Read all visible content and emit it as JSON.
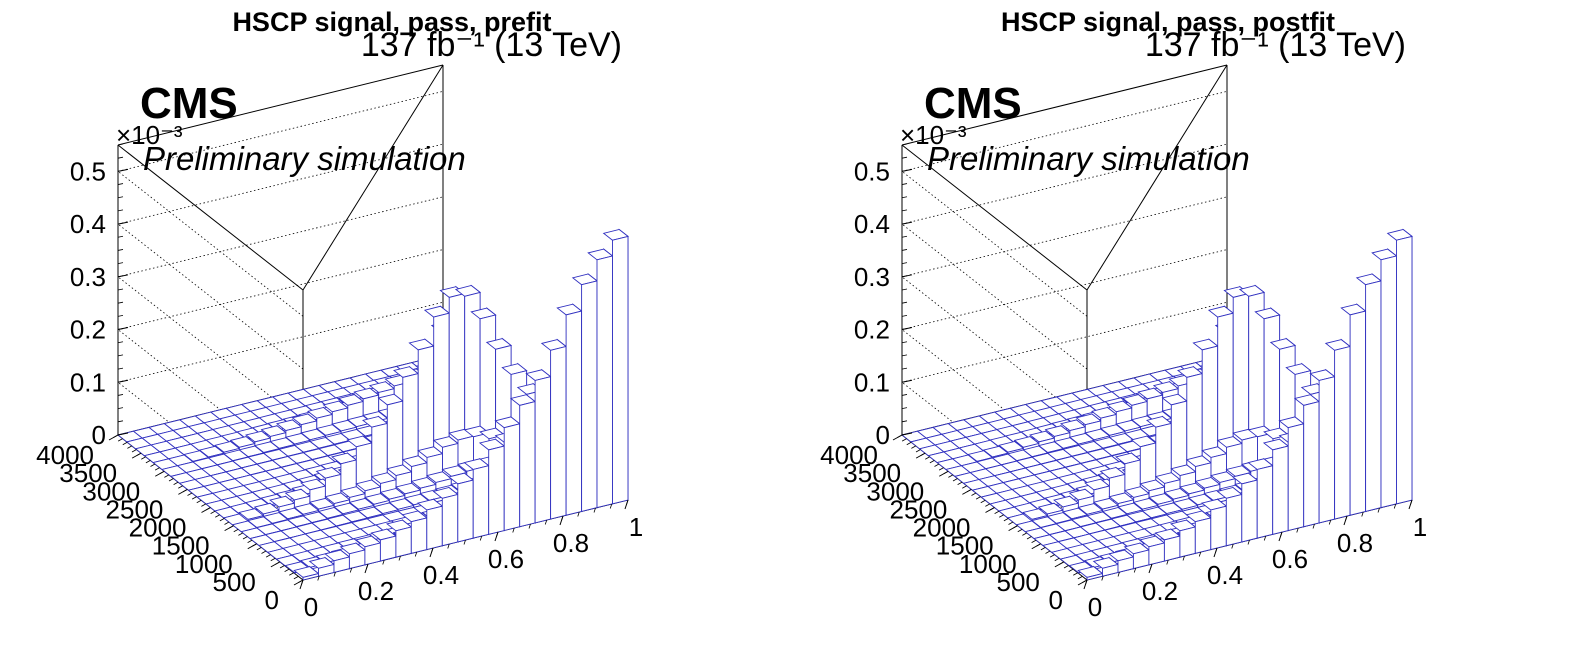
{
  "chart_data": [
    {
      "type": "bar",
      "title": "HSCP signal, pass, prefit",
      "lumi": "137 fb⁻¹ (13 TeV)",
      "cms_label": "CMS",
      "extra_label": "Preliminary simulation",
      "z_multiplier": "×10⁻³",
      "x_ticks": [
        "0",
        "0.2",
        "0.4",
        "0.6",
        "0.8",
        "1"
      ],
      "y_ticks": [
        "0",
        "500",
        "1000",
        "1500",
        "2000",
        "2500",
        "3000",
        "3500",
        "4000"
      ],
      "z_ticks": [
        "0",
        "0.1",
        "0.2",
        "0.3",
        "0.4",
        "0.5"
      ],
      "xlim": [
        0,
        1
      ],
      "ylim": [
        0,
        4000
      ],
      "zlim": [
        0,
        0.55
      ],
      "grid": true,
      "bar_color": "#3030c0",
      "series": [
        {
          "values": [
            0.005,
            0.015,
            0.022,
            0.028,
            0.034,
            0.04,
            0.05,
            0.06,
            0.075,
            0.09,
            0.11,
            0.13,
            0.16,
            0.195,
            0.23,
            0.27,
            0.32,
            0.38,
            0.43,
            0.47,
            0.5
          ]
        },
        {
          "values": [
            0.0,
            0.003,
            0.006,
            0.012,
            0.018,
            0.03,
            0.045,
            0.065,
            0.09,
            0.12,
            0.155,
            0.2,
            0.245,
            0.3,
            0.33,
            0.325,
            0.275,
            0.21,
            0.155,
            0.11,
            0.07
          ]
        },
        {
          "values": [
            0.0,
            0.0,
            0.001,
            0.002,
            0.004,
            0.006,
            0.009,
            0.012,
            0.016,
            0.02,
            0.025,
            0.03,
            0.035,
            0.04,
            0.045,
            0.05,
            0.055,
            0.06,
            0.13,
            0.105,
            0.07
          ]
        }
      ]
    },
    {
      "type": "bar",
      "title": "HSCP signal, pass, postfit",
      "lumi": "137 fb⁻¹ (13 TeV)",
      "cms_label": "CMS",
      "extra_label": "Preliminary simulation",
      "z_multiplier": "×10⁻³",
      "x_ticks": [
        "0",
        "0.2",
        "0.4",
        "0.6",
        "0.8",
        "1"
      ],
      "y_ticks": [
        "0",
        "500",
        "1000",
        "1500",
        "2000",
        "2500",
        "3000",
        "3500",
        "4000"
      ],
      "z_ticks": [
        "0",
        "0.1",
        "0.2",
        "0.3",
        "0.4",
        "0.5"
      ],
      "xlim": [
        0,
        1
      ],
      "ylim": [
        0,
        4000
      ],
      "zlim": [
        0,
        0.55
      ],
      "grid": true,
      "bar_color": "#3030c0",
      "series": [
        {
          "values": [
            0.005,
            0.015,
            0.022,
            0.028,
            0.034,
            0.04,
            0.05,
            0.06,
            0.075,
            0.09,
            0.11,
            0.13,
            0.16,
            0.195,
            0.23,
            0.27,
            0.32,
            0.38,
            0.43,
            0.47,
            0.5
          ]
        },
        {
          "values": [
            0.0,
            0.003,
            0.006,
            0.012,
            0.018,
            0.03,
            0.045,
            0.065,
            0.09,
            0.12,
            0.155,
            0.2,
            0.245,
            0.3,
            0.33,
            0.325,
            0.275,
            0.21,
            0.155,
            0.11,
            0.07
          ]
        },
        {
          "values": [
            0.0,
            0.0,
            0.001,
            0.002,
            0.004,
            0.006,
            0.009,
            0.012,
            0.016,
            0.02,
            0.025,
            0.03,
            0.035,
            0.04,
            0.045,
            0.05,
            0.055,
            0.06,
            0.13,
            0.105,
            0.07
          ]
        }
      ]
    }
  ]
}
